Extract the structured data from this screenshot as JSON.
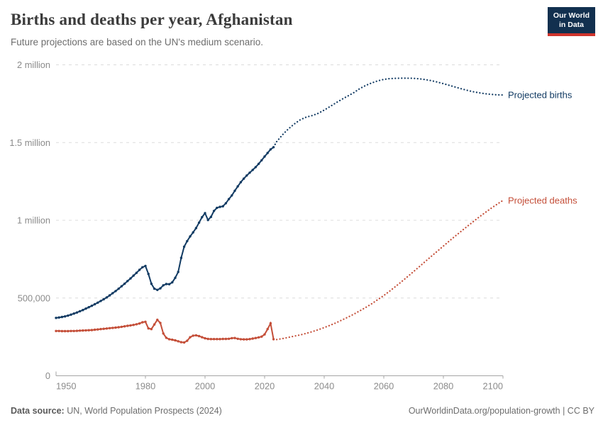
{
  "header": {
    "title": "Births and deaths per year, Afghanistan",
    "subtitle": "Future projections are based on the UN's medium scenario."
  },
  "logo": {
    "line1": "Our World",
    "line2": "in Data",
    "bg_color": "#12304F",
    "accent_color": "#CF342C"
  },
  "footer": {
    "source_label": "Data source:",
    "source_text": " UN, World Population Prospects (2024)",
    "link_text": "OurWorldinData.org/population-growth | CC BY"
  },
  "chart_data": {
    "type": "line",
    "title": "Births and deaths per year, Afghanistan",
    "subtitle": "Future projections are based on the UN's medium scenario.",
    "xlabel": "",
    "ylabel": "",
    "x_range": [
      1950,
      2100
    ],
    "y_range": [
      0,
      2000000
    ],
    "x_ticks": [
      1950,
      1980,
      2000,
      2020,
      2040,
      2060,
      2080,
      2100
    ],
    "y_ticks": [
      {
        "value": 0,
        "label": "0"
      },
      {
        "value": 500000,
        "label": "500,000"
      },
      {
        "value": 1000000,
        "label": "1 million"
      },
      {
        "value": 1500000,
        "label": "1.5 million"
      },
      {
        "value": 2000000,
        "label": "2 million"
      }
    ],
    "grid": "horizontal-dashed",
    "legend": "end-of-line labels",
    "colors": {
      "births": "#123B63",
      "deaths": "#C44E38"
    },
    "series": [
      {
        "id": "births-observed",
        "name": "Births (estimates)",
        "style": "solid",
        "color": "#123B63",
        "x_start": 1950,
        "x_step": 1,
        "values": [
          372000,
          375000,
          378000,
          382000,
          387000,
          393000,
          400000,
          407000,
          415000,
          423000,
          432000,
          441000,
          450000,
          460000,
          470000,
          481000,
          492000,
          504000,
          517000,
          531000,
          545000,
          560000,
          576000,
          592000,
          609000,
          626000,
          644000,
          662000,
          681000,
          698000,
          706000,
          655000,
          592000,
          560000,
          552000,
          562000,
          582000,
          590000,
          589000,
          601000,
          630000,
          668000,
          758000,
          830000,
          866000,
          896000,
          922000,
          950000,
          985000,
          1020000,
          1046000,
          1002000,
          1022000,
          1060000,
          1080000,
          1086000,
          1090000,
          1110000,
          1136000,
          1160000,
          1190000,
          1218000,
          1245000,
          1268000,
          1288000,
          1306000,
          1324000,
          1342000,
          1363000,
          1386000,
          1410000,
          1433000,
          1456000,
          1470000
        ]
      },
      {
        "id": "births-projected",
        "name": "Projected births",
        "style": "dotted",
        "color": "#123B63",
        "end_label": "Projected births",
        "x": [
          2023,
          2024,
          2026,
          2028,
          2030,
          2032,
          2034,
          2036,
          2038,
          2040,
          2042,
          2044,
          2046,
          2048,
          2050,
          2052,
          2054,
          2056,
          2058,
          2060,
          2062,
          2064,
          2066,
          2068,
          2070,
          2072,
          2074,
          2076,
          2078,
          2080,
          2082,
          2084,
          2086,
          2088,
          2090,
          2092,
          2094,
          2096,
          2098,
          2100
        ],
        "values": [
          1470000,
          1505000,
          1550000,
          1588000,
          1620000,
          1647000,
          1664000,
          1674000,
          1688000,
          1709000,
          1732000,
          1756000,
          1779000,
          1800000,
          1822000,
          1848000,
          1868000,
          1884000,
          1897000,
          1906000,
          1911000,
          1913000,
          1914000,
          1914000,
          1913000,
          1910000,
          1905000,
          1898000,
          1889000,
          1879000,
          1868000,
          1857000,
          1846000,
          1836000,
          1827000,
          1820000,
          1814000,
          1810000,
          1807000,
          1806000
        ]
      },
      {
        "id": "deaths-observed",
        "name": "Deaths (estimates)",
        "style": "solid",
        "color": "#C44E38",
        "x_start": 1950,
        "x_step": 1,
        "values": [
          288000,
          288000,
          287000,
          287000,
          287000,
          288000,
          288000,
          289000,
          290000,
          291000,
          292000,
          293000,
          294000,
          296000,
          298000,
          300000,
          302000,
          304000,
          306000,
          308000,
          310000,
          312000,
          315000,
          318000,
          321000,
          324000,
          327000,
          331000,
          336000,
          344000,
          347000,
          305000,
          300000,
          330000,
          360000,
          340000,
          272000,
          244000,
          235000,
          232000,
          228000,
          222000,
          216000,
          214000,
          225000,
          248000,
          258000,
          260000,
          255000,
          248000,
          241000,
          237000,
          236000,
          236000,
          236000,
          236000,
          237000,
          237000,
          238000,
          242000,
          243000,
          238000,
          235000,
          234000,
          234000,
          236000,
          239000,
          243000,
          247000,
          252000,
          266000,
          300000,
          337000,
          235000
        ]
      },
      {
        "id": "deaths-projected",
        "name": "Projected deaths",
        "style": "dotted",
        "color": "#C44E38",
        "end_label": "Projected deaths",
        "x": [
          2023,
          2024,
          2026,
          2028,
          2030,
          2032,
          2034,
          2036,
          2038,
          2040,
          2042,
          2044,
          2046,
          2048,
          2050,
          2052,
          2054,
          2056,
          2058,
          2060,
          2062,
          2064,
          2066,
          2068,
          2070,
          2072,
          2074,
          2076,
          2078,
          2080,
          2082,
          2084,
          2086,
          2088,
          2090,
          2092,
          2094,
          2096,
          2098,
          2100
        ],
        "values": [
          235000,
          233000,
          239000,
          247000,
          255000,
          263000,
          273000,
          284000,
          296000,
          310000,
          325000,
          341000,
          359000,
          377000,
          397000,
          418000,
          440000,
          464000,
          490000,
          516000,
          545000,
          575000,
          606000,
          638000,
          670000,
          703000,
          736000,
          769000,
          802000,
          834000,
          867000,
          899000,
          930000,
          961000,
          991000,
          1021000,
          1049000,
          1077000,
          1103000,
          1128000
        ]
      }
    ]
  }
}
